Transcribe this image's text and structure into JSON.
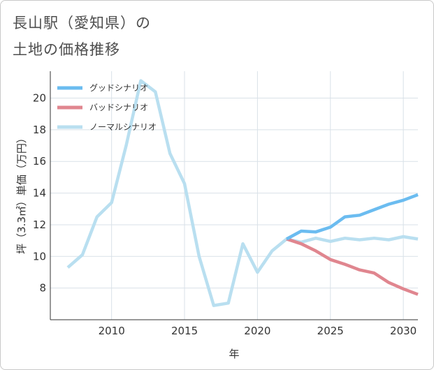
{
  "title_line1": "長山駅（愛知県）の",
  "title_line2": "土地の価格推移",
  "chart_data": {
    "type": "line",
    "xlabel": "年",
    "ylabel": "坪（3.3㎡）単価（万円）",
    "xlim": [
      2005.8,
      2031.0
    ],
    "ylim": [
      6.0,
      21.7
    ],
    "xticks": [
      2010,
      2015,
      2020,
      2025,
      2030
    ],
    "yticks": [
      8,
      10,
      12,
      14,
      16,
      18,
      20
    ],
    "grid": true,
    "legend_position": "top-left",
    "series": [
      {
        "name": "グッドシナリオ",
        "color": "#6bbcf0",
        "x": [
          2022,
          2023,
          2024,
          2025,
          2026,
          2027,
          2028,
          2029,
          2030,
          2031
        ],
        "values": [
          11.1,
          11.6,
          11.55,
          11.85,
          12.5,
          12.6,
          12.95,
          13.3,
          13.55,
          13.9
        ]
      },
      {
        "name": "バッドシナリオ",
        "color": "#e0868f",
        "x": [
          2022,
          2023,
          2024,
          2025,
          2026,
          2027,
          2028,
          2029,
          2030,
          2031
        ],
        "values": [
          11.1,
          10.8,
          10.35,
          9.8,
          9.5,
          9.15,
          8.95,
          8.35,
          7.95,
          7.6
        ]
      },
      {
        "name": "ノーマルシナリオ",
        "color": "#b9dff0",
        "x": [
          2007,
          2008,
          2009,
          2010,
          2011,
          2012,
          2013,
          2014,
          2015,
          2016,
          2017,
          2018,
          2019,
          2020,
          2021,
          2022,
          2023,
          2024,
          2025,
          2026,
          2027,
          2028,
          2029,
          2030,
          2031
        ],
        "values": [
          9.3,
          10.1,
          12.5,
          13.4,
          17.0,
          21.1,
          20.4,
          16.5,
          14.6,
          10.0,
          6.9,
          7.05,
          10.8,
          9.0,
          10.35,
          11.1,
          10.9,
          11.15,
          10.95,
          11.15,
          11.05,
          11.15,
          11.05,
          11.25,
          11.1
        ]
      }
    ]
  }
}
